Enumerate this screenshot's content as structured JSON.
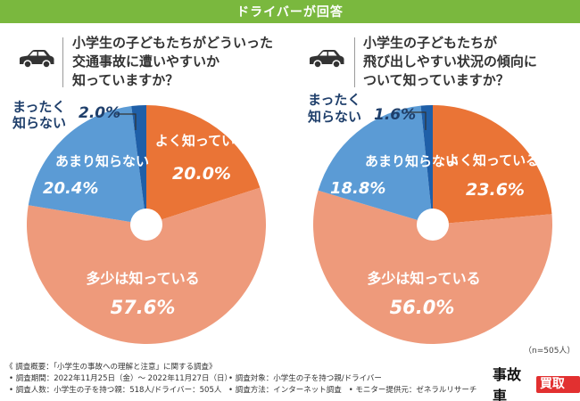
{
  "header": {
    "title": "ドライバーが回答"
  },
  "colors": {
    "header": "#7ab83e",
    "well_known": "#ea7436",
    "somewhat": "#ee9a7b",
    "not_much": "#5b9bd5",
    "not_at_all": "#1f5fa8",
    "hole": "#ffffff"
  },
  "left": {
    "question_lines": [
      "小学生の子どもたちがどういった",
      "交通事故に遭いやすいか",
      "知っていますか？"
    ],
    "car_icon": "car-icon"
  },
  "right": {
    "question_lines": [
      "小学生の子どもたちが",
      "飛び出しやすい状況の傾向に",
      "ついて知っていますか？"
    ],
    "car_icon": "car-icon"
  },
  "chart_data": [
    {
      "type": "pie",
      "variant": "donut",
      "title": "小学生の子どもたちがどういった交通事故に遭いやすいか知っていますか？",
      "categories": [
        "よく知っている",
        "多少は知っている",
        "あまり知らない",
        "まったく知らない"
      ],
      "values": [
        20.0,
        57.6,
        20.4,
        2.0
      ],
      "value_labels": [
        "20.0%",
        "57.6%",
        "20.4%",
        "2.0%"
      ],
      "unit": "%"
    },
    {
      "type": "pie",
      "variant": "donut",
      "title": "小学生の子どもたちが飛び出しやすい状況の傾向について知っていますか？",
      "categories": [
        "よく知っている",
        "多少は知っている",
        "あまり知らない",
        "まったく知らない"
      ],
      "values": [
        23.6,
        56.0,
        18.8,
        1.6
      ],
      "value_labels": [
        "23.6%",
        "56.0%",
        "18.8%",
        "1.6%"
      ],
      "unit": "%"
    }
  ],
  "sample_note": "（n=505人）",
  "footer": {
    "title": "《 調査概要：「小学生の事故への理解と注意」に関する調査》",
    "period": "• 調査期間：2022年11月25日（金）～ 2022年11月27日（日）",
    "respondents": "• 調査人数：小学生の子を持つ親：518人/ドライバー：505人",
    "target": "• 調査対象：小学生の子を持つ親/ドライバー",
    "method": "• 調査方法：インターネット調査",
    "provider": "• モニター提供元：ゼネラルリサーチ"
  },
  "logo": {
    "main": "事故車",
    "badge": "買取王"
  }
}
